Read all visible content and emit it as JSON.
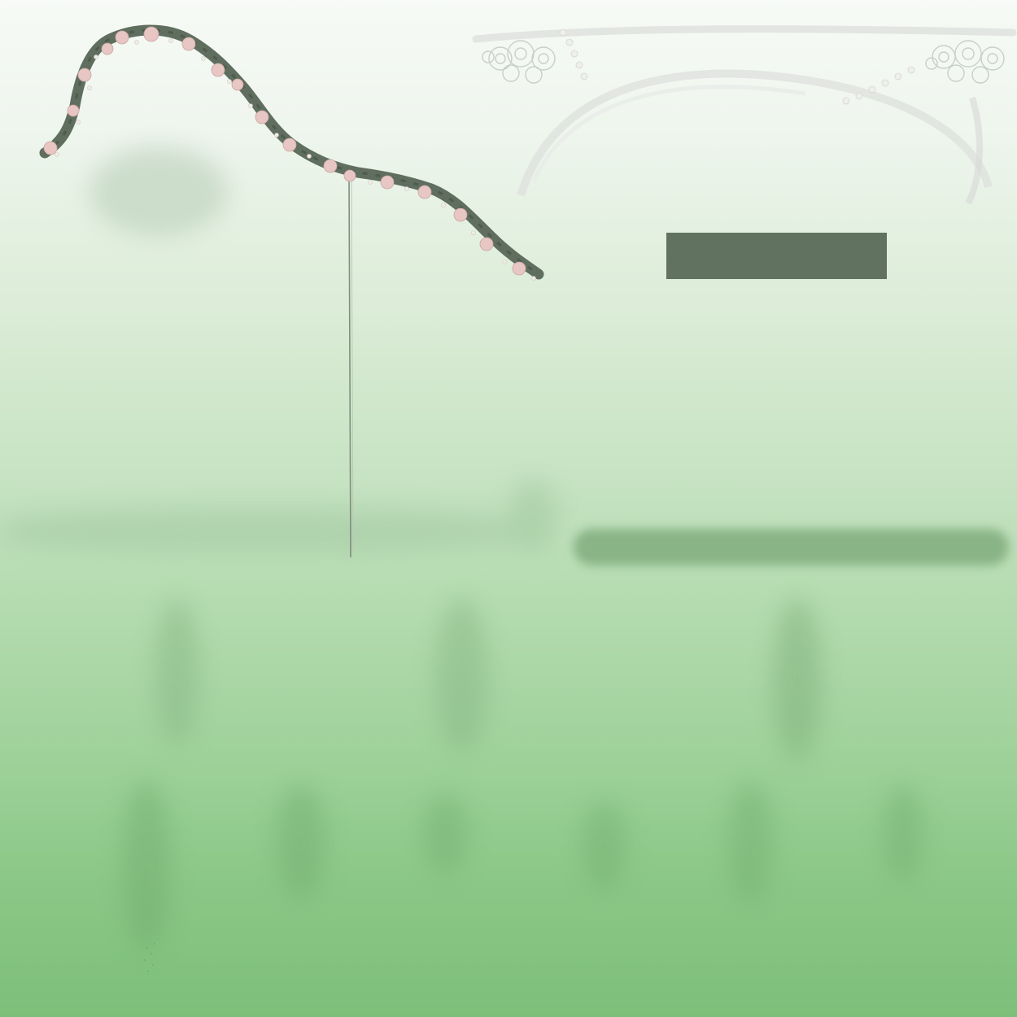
{
  "scene": {
    "palette": {
      "sky_top": "#f7faf6",
      "ground_bottom": "#7dbf7a",
      "vine_dark": "#5f6e5e",
      "blossom_pink": "#e7c6c3",
      "pearl": "#f2ede6",
      "plank": "#627260",
      "lace_grey": "#c9cbc8"
    },
    "elements": {
      "vine": "flowering-vine",
      "rope": "hanging-thread",
      "lace": "lace-garland",
      "platform": "floating-plank",
      "shadows": "blurred-foliage-shadows"
    }
  }
}
